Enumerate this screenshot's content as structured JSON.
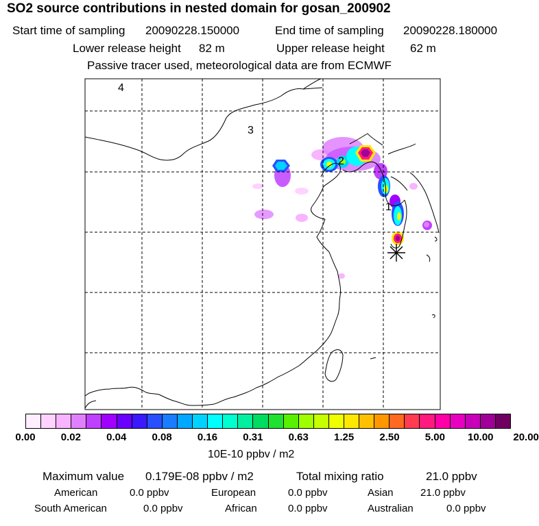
{
  "title": "SO2 source contributions in nested domain for gosan_200902",
  "sampling": {
    "start_label": "Start time of sampling",
    "start_value": "20090228.150000",
    "end_label": "End time of sampling",
    "end_value": "20090228.180000"
  },
  "release": {
    "lower_label": "Lower release height",
    "lower_value": "82 m",
    "upper_label": "Upper release height",
    "upper_value": "62 m"
  },
  "note": "Passive tracer used, meteorological data are from ECMWF",
  "map": {
    "region_labels": [
      "1",
      "2",
      "3",
      "4"
    ],
    "receptor_marker": "asterisk-marker"
  },
  "colorbar": {
    "ticks": [
      "0.00",
      "0.02",
      "0.04",
      "0.08",
      "0.16",
      "0.31",
      "0.63",
      "1.25",
      "2.50",
      "5.00",
      "10.00",
      "20.00"
    ],
    "colors": [
      "#ffeeff",
      "#ffd2ff",
      "#f8b4ff",
      "#e080ff",
      "#c040ff",
      "#a000ff",
      "#6a00ff",
      "#3c18ff",
      "#2850ff",
      "#1a7cff",
      "#00a8ff",
      "#00d2ff",
      "#00ffff",
      "#00ffd0",
      "#00f0a0",
      "#00dc60",
      "#20e030",
      "#58f000",
      "#a0ff00",
      "#c8ff00",
      "#f0ff00",
      "#ffe800",
      "#ffc000",
      "#ff9800",
      "#ff6a20",
      "#ff3c50",
      "#ff1a80",
      "#ff00a8",
      "#e800c0",
      "#c800b8",
      "#a00098",
      "#700060"
    ],
    "unit": "10E-10 ppbv / m2"
  },
  "stats": {
    "max_label": "Maximum value",
    "max_value": "0.179E-08 ppbv / m2",
    "total_label": "Total mixing ratio",
    "total_value": "21.0 ppbv",
    "regions": [
      {
        "name": "American",
        "value": "0.0 ppbv"
      },
      {
        "name": "European",
        "value": "0.0 ppbv"
      },
      {
        "name": "Asian",
        "value": "21.0 ppbv"
      },
      {
        "name": "South American",
        "value": "0.0 ppbv"
      },
      {
        "name": "African",
        "value": "0.0 ppbv"
      },
      {
        "name": "Australian",
        "value": "0.0 ppbv"
      }
    ]
  }
}
